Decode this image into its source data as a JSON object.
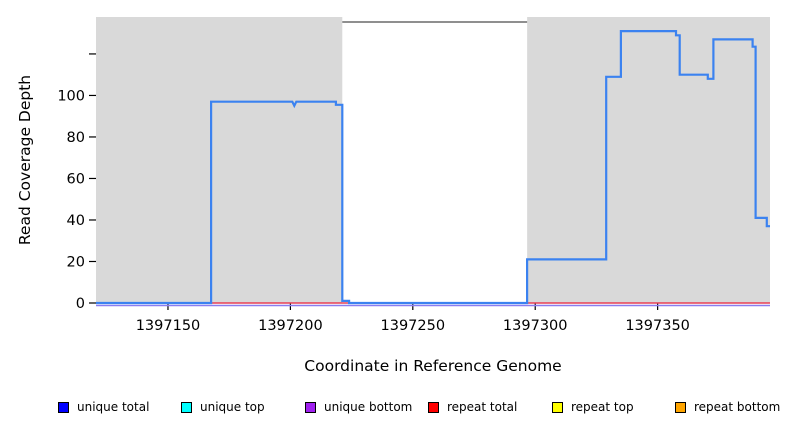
{
  "chart_data": {
    "type": "line",
    "title": "",
    "xlabel": "Coordinate in Reference Genome",
    "ylabel": "Read Coverage Depth",
    "xlim": [
      1397120.6,
      1397395.9
    ],
    "ylim": [
      0,
      137.8
    ],
    "grid": false,
    "background_color": "#ffffff",
    "shaded_regions": {
      "color": "#d9d9d9",
      "x_ranges": [
        [
          1397120.6,
          1397221.2
        ],
        [
          1397296.7,
          1397395.9
        ]
      ]
    },
    "x_ticks": [
      {
        "v": 1397150,
        "label": "1397150"
      },
      {
        "v": 1397200,
        "label": "1397200"
      },
      {
        "v": 1397250,
        "label": "1397250"
      },
      {
        "v": 1397300,
        "label": "1397300"
      },
      {
        "v": 1397350,
        "label": "1397350"
      }
    ],
    "y_ticks": [
      {
        "v": 0,
        "label": "0"
      },
      {
        "v": 20,
        "label": "20"
      },
      {
        "v": 40,
        "label": "40"
      },
      {
        "v": 60,
        "label": "60"
      },
      {
        "v": 80,
        "label": "80"
      },
      {
        "v": 100,
        "label": "100"
      },
      {
        "v": 120,
        "label": ""
      }
    ],
    "series": [
      {
        "name": "unique-bottom-baseline",
        "color": "#8a7cf0",
        "width": 1.6,
        "points": [
          [
            1397120.6,
            -1.2
          ],
          [
            1397395.9,
            -1.2
          ]
        ]
      },
      {
        "name": "repeat-total-baseline",
        "color": "#e74055",
        "width": 1.4,
        "points": [
          [
            1397120.6,
            0
          ],
          [
            1397395.9,
            0
          ]
        ]
      },
      {
        "name": "coverage-depth",
        "color": "#3b82f0",
        "width": 2.2,
        "points": [
          [
            1397120.6,
            0
          ],
          [
            1397167.6,
            0
          ],
          [
            1397167.6,
            97
          ],
          [
            1397200.8,
            97
          ],
          [
            1397201.6,
            95
          ],
          [
            1397202.4,
            97
          ],
          [
            1397218.6,
            97
          ],
          [
            1397218.6,
            95.5
          ],
          [
            1397221.2,
            95.5
          ],
          [
            1397221.2,
            1
          ],
          [
            1397224,
            1
          ],
          [
            1397224,
            0
          ],
          [
            1397296.7,
            0
          ],
          [
            1397296.7,
            21
          ],
          [
            1397329,
            21
          ],
          [
            1397329,
            109
          ],
          [
            1397335,
            109
          ],
          [
            1397335,
            131
          ],
          [
            1397357.5,
            131
          ],
          [
            1397357.5,
            129
          ],
          [
            1397359,
            129
          ],
          [
            1397359,
            110
          ],
          [
            1397370.5,
            110
          ],
          [
            1397370.5,
            108
          ],
          [
            1397372.8,
            108
          ],
          [
            1397372.8,
            127
          ],
          [
            1397388.8,
            127
          ],
          [
            1397388.8,
            123.5
          ],
          [
            1397390,
            123.5
          ],
          [
            1397390,
            41
          ],
          [
            1397394.6,
            41
          ],
          [
            1397394.6,
            37
          ],
          [
            1397395.9,
            37
          ]
        ]
      }
    ],
    "legend": {
      "position": "bottom",
      "entries": [
        {
          "label": "unique total",
          "color": "#0000ff"
        },
        {
          "label": "unique top",
          "color": "#00ffff"
        },
        {
          "label": "unique bottom",
          "color": "#a020f0"
        },
        {
          "label": "repeat total",
          "color": "#ff0000"
        },
        {
          "label": "repeat top",
          "color": "#ffff00"
        },
        {
          "label": "repeat bottom",
          "color": "#ffa500"
        }
      ]
    }
  }
}
